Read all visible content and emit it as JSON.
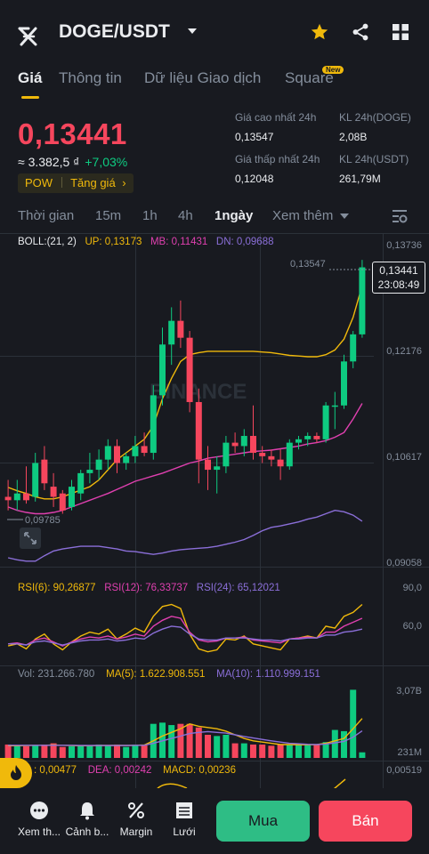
{
  "header": {
    "pair": "DOGE/USDT",
    "icons": [
      "back-icon",
      "chevron-down-icon",
      "star-icon",
      "share-icon",
      "grid-icon"
    ]
  },
  "tabs": [
    {
      "label": "Giá",
      "active": true
    },
    {
      "label": "Thông tin"
    },
    {
      "label": "Dữ liệu Giao dịch"
    },
    {
      "label": "Square",
      "badge": "New"
    }
  ],
  "ticker": {
    "last_price": "0,13441",
    "fiat_value": "≈ 3.382,5 ₫",
    "change_pct": "+7,03%",
    "tag_pow": "POW",
    "tag_gainers": "Tăng giá",
    "high_label": "Giá cao nhất 24h",
    "high_value": "0,13547",
    "low_label": "Giá thấp nhất 24h",
    "low_value": "0,12048",
    "vol_doge_label": "KL 24h(DOGE)",
    "vol_doge_value": "2,08B",
    "vol_usdt_label": "KL 24h(USDT)",
    "vol_usdt_value": "261,79M"
  },
  "intervals": {
    "items": [
      "Thời gian",
      "15m",
      "1h",
      "4h",
      "1ngày",
      "Xem thêm"
    ],
    "active": "1ngày"
  },
  "boll": {
    "label": "BOLL:(21, 2)",
    "up": "UP: 0,13173",
    "mb": "MB: 0,11431",
    "dn": "DN: 0,09688"
  },
  "price_axis": [
    "0,13736",
    "0,12176",
    "0,10617",
    "0,09058"
  ],
  "chart_marks": {
    "high_mark": "0,13547",
    "low_mark": "0,09785",
    "current_price": "0,13441",
    "countdown": "23:08:49",
    "watermark": "BINANCE"
  },
  "rsi": {
    "rsi6": "RSI(6): 90,26877",
    "rsi12": "RSI(12): 76,33737",
    "rsi24": "RSI(24): 65,12021",
    "axis": [
      "90,0",
      "60,0"
    ]
  },
  "volume": {
    "vol": "Vol: 231.266.780",
    "ma5": "MA(5): 1.622.908.551",
    "ma10": "MA(10): 1.110.999.151",
    "axis": [
      "3,07B",
      "231M"
    ]
  },
  "macd": {
    "dif": ": 0,00477",
    "dea": "DEA: 0,00242",
    "macd": "MACD: 0,00236",
    "axis": "0,00519"
  },
  "bottom_nav": {
    "items": [
      "Xem th...",
      "Cảnh b...",
      "Margin",
      "Lưới"
    ],
    "buy": "Mua",
    "sell": "Bán"
  },
  "colors": {
    "up": "#0ecb81",
    "down": "#f6465d",
    "accent": "#f0b90b",
    "boll_up": "#f0b90b",
    "boll_mb": "#e040b0",
    "boll_dn": "#8b6fd9"
  },
  "chart_data": [
    {
      "type": "candlestick",
      "title": "DOGE/USDT 1ngày",
      "ylim": [
        0.09058,
        0.13736
      ],
      "candles": [
        {
          "o": 0.1005,
          "h": 0.103,
          "l": 0.0985,
          "c": 0.1
        },
        {
          "o": 0.1,
          "h": 0.103,
          "l": 0.0985,
          "c": 0.101
        },
        {
          "o": 0.101,
          "h": 0.105,
          "l": 0.0995,
          "c": 0.1
        },
        {
          "o": 0.1005,
          "h": 0.107,
          "l": 0.0998,
          "c": 0.1055
        },
        {
          "o": 0.106,
          "h": 0.108,
          "l": 0.1015,
          "c": 0.1025
        },
        {
          "o": 0.102,
          "h": 0.104,
          "l": 0.099,
          "c": 0.1005
        },
        {
          "o": 0.101,
          "h": 0.1015,
          "l": 0.098,
          "c": 0.0985
        },
        {
          "o": 0.099,
          "h": 0.103,
          "l": 0.0985,
          "c": 0.102
        },
        {
          "o": 0.101,
          "h": 0.1045,
          "l": 0.1,
          "c": 0.104
        },
        {
          "o": 0.104,
          "h": 0.107,
          "l": 0.1025,
          "c": 0.1045
        },
        {
          "o": 0.1045,
          "h": 0.1075,
          "l": 0.103,
          "c": 0.106
        },
        {
          "o": 0.106,
          "h": 0.109,
          "l": 0.1045,
          "c": 0.108
        },
        {
          "o": 0.108,
          "h": 0.109,
          "l": 0.104,
          "c": 0.1055
        },
        {
          "o": 0.1055,
          "h": 0.107,
          "l": 0.1045,
          "c": 0.1065
        },
        {
          "o": 0.1065,
          "h": 0.1095,
          "l": 0.1055,
          "c": 0.108
        },
        {
          "o": 0.108,
          "h": 0.11,
          "l": 0.1065,
          "c": 0.107
        },
        {
          "o": 0.107,
          "h": 0.117,
          "l": 0.106,
          "c": 0.1155
        },
        {
          "o": 0.1155,
          "h": 0.1255,
          "l": 0.114,
          "c": 0.123
        },
        {
          "o": 0.123,
          "h": 0.1285,
          "l": 0.12,
          "c": 0.1265
        },
        {
          "o": 0.1265,
          "h": 0.1295,
          "l": 0.1225,
          "c": 0.124
        },
        {
          "o": 0.124,
          "h": 0.125,
          "l": 0.113,
          "c": 0.1145
        },
        {
          "o": 0.1145,
          "h": 0.1165,
          "l": 0.1025,
          "c": 0.106
        },
        {
          "o": 0.106,
          "h": 0.108,
          "l": 0.1015,
          "c": 0.1045
        },
        {
          "o": 0.1045,
          "h": 0.1065,
          "l": 0.101,
          "c": 0.105
        },
        {
          "o": 0.105,
          "h": 0.1095,
          "l": 0.104,
          "c": 0.1085
        },
        {
          "o": 0.1085,
          "h": 0.11,
          "l": 0.107,
          "c": 0.108
        },
        {
          "o": 0.108,
          "h": 0.1105,
          "l": 0.1065,
          "c": 0.1095
        },
        {
          "o": 0.1095,
          "h": 0.114,
          "l": 0.106,
          "c": 0.107
        },
        {
          "o": 0.107,
          "h": 0.108,
          "l": 0.1055,
          "c": 0.1065
        },
        {
          "o": 0.1065,
          "h": 0.1075,
          "l": 0.105,
          "c": 0.106
        },
        {
          "o": 0.106,
          "h": 0.1075,
          "l": 0.103,
          "c": 0.105
        },
        {
          "o": 0.105,
          "h": 0.109,
          "l": 0.1045,
          "c": 0.1085
        },
        {
          "o": 0.1085,
          "h": 0.1095,
          "l": 0.1075,
          "c": 0.109
        },
        {
          "o": 0.109,
          "h": 0.11,
          "l": 0.108,
          "c": 0.1095
        },
        {
          "o": 0.1095,
          "h": 0.11,
          "l": 0.1085,
          "c": 0.109
        },
        {
          "o": 0.109,
          "h": 0.1145,
          "l": 0.1085,
          "c": 0.114
        },
        {
          "o": 0.114,
          "h": 0.116,
          "l": 0.1105,
          "c": 0.114
        },
        {
          "o": 0.114,
          "h": 0.1215,
          "l": 0.1135,
          "c": 0.1205
        },
        {
          "o": 0.1205,
          "h": 0.125,
          "l": 0.1195,
          "c": 0.1245
        },
        {
          "o": 0.1245,
          "h": 0.1355,
          "l": 0.124,
          "c": 0.1344
        }
      ],
      "boll_up": [
        0.1019,
        0.1014,
        0.101,
        0.1005,
        0.1002,
        0.1002,
        0.1005,
        0.101,
        0.1015,
        0.102,
        0.103,
        0.1045,
        0.106,
        0.107,
        0.108,
        0.109,
        0.111,
        0.115,
        0.118,
        0.1205,
        0.1215,
        0.1218,
        0.122,
        0.122,
        0.122,
        0.122,
        0.122,
        0.122,
        0.1219,
        0.1218,
        0.1216,
        0.1214,
        0.1213,
        0.1212,
        0.1212,
        0.1215,
        0.1222,
        0.1238,
        0.127,
        0.1317
      ],
      "boll_mb": [
        0.099,
        0.0985,
        0.0982,
        0.098,
        0.098,
        0.0982,
        0.0985,
        0.099,
        0.0995,
        0.1,
        0.1005,
        0.101,
        0.1016,
        0.1022,
        0.1028,
        0.1032,
        0.1036,
        0.104,
        0.1045,
        0.105,
        0.1055,
        0.1058,
        0.1062,
        0.1064,
        0.1066,
        0.1068,
        0.107,
        0.1072,
        0.1073,
        0.1074,
        0.1076,
        0.1078,
        0.108,
        0.1083,
        0.1085,
        0.1088,
        0.1093,
        0.11,
        0.112,
        0.1143
      ],
      "boll_dn": [
        0.0915,
        0.0912,
        0.091,
        0.091,
        0.0918,
        0.0925,
        0.0928,
        0.093,
        0.0932,
        0.0932,
        0.0932,
        0.093,
        0.0928,
        0.0925,
        0.0924,
        0.0922,
        0.092,
        0.0922,
        0.0925,
        0.0927,
        0.0928,
        0.0929,
        0.093,
        0.0932,
        0.0935,
        0.0938,
        0.0942,
        0.0948,
        0.0955,
        0.096,
        0.0962,
        0.0965,
        0.0968,
        0.0972,
        0.0975,
        0.098,
        0.0985,
        0.0983,
        0.0978,
        0.0969
      ]
    },
    {
      "type": "line",
      "title": "RSI",
      "ylim": [
        30,
        95
      ],
      "series": [
        {
          "name": "RSI(6)",
          "values": [
            48,
            50,
            45,
            55,
            60,
            50,
            44,
            52,
            58,
            62,
            60,
            65,
            55,
            60,
            66,
            62,
            78,
            88,
            90,
            86,
            60,
            45,
            42,
            44,
            55,
            54,
            58,
            50,
            48,
            46,
            44,
            55,
            56,
            58,
            56,
            68,
            66,
            78,
            82,
            90
          ]
        },
        {
          "name": "RSI(12)",
          "values": [
            50,
            51,
            49,
            54,
            56,
            52,
            48,
            52,
            55,
            57,
            56,
            58,
            55,
            57,
            60,
            58,
            68,
            74,
            78,
            76,
            62,
            54,
            52,
            53,
            56,
            56,
            57,
            54,
            53,
            52,
            51,
            55,
            56,
            57,
            56,
            62,
            62,
            68,
            72,
            76
          ]
        },
        {
          "name": "RSI(24)",
          "values": [
            50,
            50,
            49,
            52,
            53,
            51,
            49,
            51,
            53,
            54,
            54,
            55,
            53,
            54,
            56,
            55,
            61,
            65,
            68,
            67,
            60,
            55,
            54,
            54,
            56,
            56,
            56,
            55,
            54,
            54,
            53,
            55,
            55,
            56,
            56,
            59,
            59,
            62,
            63,
            65
          ]
        }
      ]
    },
    {
      "type": "bar",
      "title": "Volume",
      "ylim": [
        0,
        3.07
      ],
      "series": [
        {
          "name": "Vol",
          "values": [
            0.55,
            0.5,
            0.48,
            0.52,
            0.55,
            0.6,
            0.45,
            0.48,
            0.5,
            0.5,
            0.55,
            0.5,
            0.55,
            0.45,
            0.55,
            0.52,
            1.4,
            1.45,
            1.35,
            1.4,
            1.4,
            1.25,
            0.95,
            0.9,
            0.95,
            0.6,
            0.6,
            0.55,
            0.55,
            0.5,
            0.55,
            0.55,
            0.55,
            0.55,
            0.55,
            0.65,
            1.15,
            1.1,
            2.8,
            0.23
          ]
        },
        {
          "name": "MA(5)",
          "values": [
            0.5,
            0.5,
            0.51,
            0.52,
            0.52,
            0.53,
            0.52,
            0.51,
            0.5,
            0.5,
            0.51,
            0.51,
            0.52,
            0.51,
            0.52,
            0.53,
            0.7,
            0.9,
            1.05,
            1.2,
            1.4,
            1.3,
            1.25,
            1.2,
            1.1,
            0.95,
            0.8,
            0.7,
            0.65,
            0.6,
            0.55,
            0.55,
            0.54,
            0.54,
            0.55,
            0.6,
            0.7,
            0.8,
            1.2,
            1.62
          ]
        },
        {
          "name": "MA(10)",
          "values": [
            0.52,
            0.52,
            0.52,
            0.52,
            0.52,
            0.52,
            0.52,
            0.52,
            0.51,
            0.51,
            0.51,
            0.51,
            0.51,
            0.51,
            0.52,
            0.52,
            0.6,
            0.7,
            0.8,
            0.9,
            1.0,
            1.05,
            1.08,
            1.05,
            1.02,
            0.95,
            0.88,
            0.82,
            0.76,
            0.7,
            0.65,
            0.6,
            0.58,
            0.56,
            0.55,
            0.57,
            0.62,
            0.68,
            0.85,
            1.11
          ]
        }
      ]
    }
  ]
}
